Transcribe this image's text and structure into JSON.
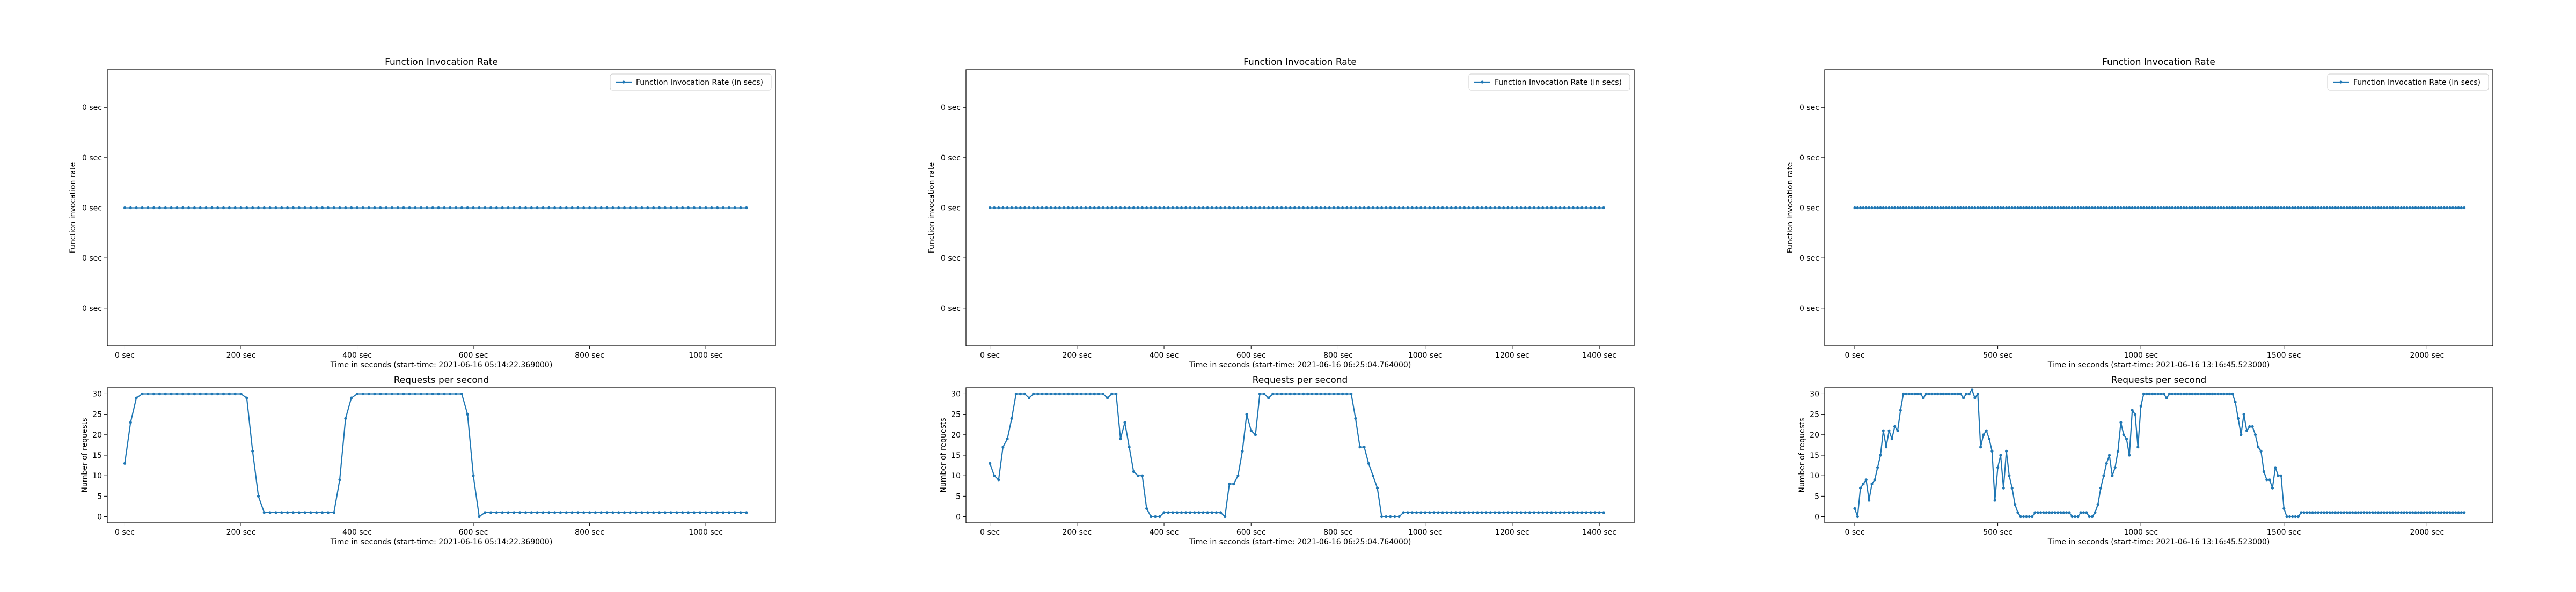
{
  "chart_data": [
    {
      "id": "p1-rate",
      "type": "line",
      "title": "Function Invocation Rate",
      "xlabel": "Time in seconds (start-time: 2021-06-16 05:14:22.369000)",
      "ylabel": "Function invocation rate",
      "legend": "Function Invocation Rate (in secs)",
      "legend_position": "top-right",
      "xlim": [
        -30,
        1120
      ],
      "x_ticks": [
        0,
        200,
        400,
        600,
        800,
        1000
      ],
      "x_tick_labels": [
        "0 sec",
        "200 sec",
        "400 sec",
        "600 sec",
        "800 sec",
        "1000 sec"
      ],
      "ylim": [
        -0.055,
        0.055
      ],
      "y_ticks": [
        -0.04,
        -0.02,
        0,
        0.02,
        0.04
      ],
      "y_tick_labels": [
        "0 sec",
        "0 sec",
        "0 sec",
        "0 sec",
        "0 sec"
      ],
      "series": [
        {
          "x_start": 0,
          "x_step": 10,
          "count": 108,
          "constant": 0
        }
      ],
      "color": "#1f77b4"
    },
    {
      "id": "p1-req",
      "type": "line",
      "title": "Requests per second",
      "xlabel": "Time in seconds (start-time: 2021-06-16 05:14:22.369000)",
      "ylabel": "Number of requests",
      "xlim": [
        -30,
        1120
      ],
      "x_ticks": [
        0,
        200,
        400,
        600,
        800,
        1000
      ],
      "x_tick_labels": [
        "0 sec",
        "200 sec",
        "400 sec",
        "600 sec",
        "800 sec",
        "1000 sec"
      ],
      "ylim": [
        -1.5,
        31.5
      ],
      "y_ticks": [
        0,
        5,
        10,
        15,
        20,
        25,
        30
      ],
      "y_tick_labels": [
        "0",
        "5",
        "10",
        "15",
        "20",
        "25",
        "30"
      ],
      "series": [
        {
          "x_start": 0,
          "x_step": 10,
          "values": [
            13,
            23,
            29,
            30,
            30,
            30,
            30,
            30,
            30,
            30,
            30,
            30,
            30,
            30,
            30,
            30,
            30,
            30,
            30,
            30,
            30,
            29,
            16,
            5,
            1,
            1,
            1,
            1,
            1,
            1,
            1,
            1,
            1,
            1,
            1,
            1,
            1,
            9,
            24,
            29,
            30,
            30,
            30,
            30,
            30,
            30,
            30,
            30,
            30,
            30,
            30,
            30,
            30,
            30,
            30,
            30,
            30,
            30,
            30,
            25,
            10,
            0,
            1,
            1,
            1,
            1,
            1,
            1,
            1,
            1,
            1,
            1,
            1,
            1,
            1,
            1,
            1,
            1,
            1,
            1,
            1,
            1,
            1,
            1,
            1,
            1,
            1,
            1,
            1,
            1,
            1,
            1,
            1,
            1,
            1,
            1,
            1,
            1,
            1,
            1,
            1,
            1,
            1,
            1,
            1,
            1,
            1,
            1
          ]
        }
      ],
      "color": "#1f77b4"
    },
    {
      "id": "p2-rate",
      "type": "line",
      "title": "Function Invocation Rate",
      "xlabel": "Time in seconds (start-time: 2021-06-16 06:25:04.764000)",
      "ylabel": "Function invocation rate",
      "legend": "Function Invocation Rate (in secs)",
      "legend_position": "top-right",
      "xlim": [
        -55,
        1480
      ],
      "x_ticks": [
        0,
        200,
        400,
        600,
        800,
        1000,
        1200,
        1400
      ],
      "x_tick_labels": [
        "0 sec",
        "200 sec",
        "400 sec",
        "600 sec",
        "800 sec",
        "1000 sec",
        "1200 sec",
        "1400 sec"
      ],
      "ylim": [
        -0.055,
        0.055
      ],
      "y_ticks": [
        -0.04,
        -0.02,
        0,
        0.02,
        0.04
      ],
      "y_tick_labels": [
        "0 sec",
        "0 sec",
        "0 sec",
        "0 sec",
        "0 sec"
      ],
      "series": [
        {
          "x_start": 0,
          "x_step": 10,
          "count": 142,
          "constant": 0
        }
      ],
      "color": "#1f77b4"
    },
    {
      "id": "p2-req",
      "type": "line",
      "title": "Requests per second",
      "xlabel": "Time in seconds (start-time: 2021-06-16 06:25:04.764000)",
      "ylabel": "Number of requests",
      "xlim": [
        -55,
        1480
      ],
      "x_ticks": [
        0,
        200,
        400,
        600,
        800,
        1000,
        1200,
        1400
      ],
      "x_tick_labels": [
        "0 sec",
        "200 sec",
        "400 sec",
        "600 sec",
        "800 sec",
        "1000 sec",
        "1200 sec",
        "1400 sec"
      ],
      "ylim": [
        -1.5,
        31.5
      ],
      "y_ticks": [
        0,
        5,
        10,
        15,
        20,
        25,
        30
      ],
      "y_tick_labels": [
        "0",
        "5",
        "10",
        "15",
        "20",
        "25",
        "30"
      ],
      "series": [
        {
          "x_start": 0,
          "x_step": 10,
          "values": [
            13,
            10,
            9,
            17,
            19,
            24,
            30,
            30,
            30,
            29,
            30,
            30,
            30,
            30,
            30,
            30,
            30,
            30,
            30,
            30,
            30,
            30,
            30,
            30,
            30,
            30,
            30,
            29,
            30,
            30,
            19,
            23,
            17,
            11,
            10,
            10,
            2,
            0,
            0,
            0,
            1,
            1,
            1,
            1,
            1,
            1,
            1,
            1,
            1,
            1,
            1,
            1,
            1,
            1,
            0,
            8,
            8,
            10,
            16,
            25,
            21,
            20,
            30,
            30,
            29,
            30,
            30,
            30,
            30,
            30,
            30,
            30,
            30,
            30,
            30,
            30,
            30,
            30,
            30,
            30,
            30,
            30,
            30,
            30,
            24,
            17,
            17,
            13,
            10,
            7,
            0,
            0,
            0,
            0,
            0,
            1,
            1,
            1,
            1,
            1,
            1,
            1,
            1,
            1,
            1,
            1,
            1,
            1,
            1,
            1,
            1,
            1,
            1,
            1,
            1,
            1,
            1,
            1,
            1,
            1,
            1,
            1,
            1,
            1,
            1,
            1,
            1,
            1,
            1,
            1,
            1,
            1,
            1,
            1,
            1,
            1,
            1,
            1,
            1,
            1,
            1,
            1
          ]
        }
      ],
      "color": "#1f77b4"
    },
    {
      "id": "p3-rate",
      "type": "line",
      "title": "Function Invocation Rate",
      "xlabel": "Time in seconds (start-time: 2021-06-16 13:16:45.523000)",
      "ylabel": "Function invocation rate",
      "legend": "Function Invocation Rate (in secs)",
      "legend_position": "top-right",
      "xlim": [
        -105,
        2230
      ],
      "x_ticks": [
        0,
        500,
        1000,
        1500,
        2000
      ],
      "x_tick_labels": [
        "0 sec",
        "500 sec",
        "1000 sec",
        "1500 sec",
        "2000 sec"
      ],
      "ylim": [
        -0.055,
        0.055
      ],
      "y_ticks": [
        -0.04,
        -0.02,
        0,
        0.02,
        0.04
      ],
      "y_tick_labels": [
        "0 sec",
        "0 sec",
        "0 sec",
        "0 sec",
        "0 sec"
      ],
      "series": [
        {
          "x_start": 0,
          "x_step": 10,
          "count": 214,
          "constant": 0
        }
      ],
      "color": "#1f77b4"
    },
    {
      "id": "p3-req",
      "type": "line",
      "title": "Requests per second",
      "xlabel": "Time in seconds (start-time: 2021-06-16 13:16:45.523000)",
      "ylabel": "Number of requests",
      "xlim": [
        -105,
        2230
      ],
      "x_ticks": [
        0,
        500,
        1000,
        1500,
        2000
      ],
      "x_tick_labels": [
        "0 sec",
        "500 sec",
        "1000 sec",
        "1500 sec",
        "2000 sec"
      ],
      "ylim": [
        -1.5,
        31.5
      ],
      "y_ticks": [
        0,
        5,
        10,
        15,
        20,
        25,
        30
      ],
      "y_tick_labels": [
        "0",
        "5",
        "10",
        "15",
        "20",
        "25",
        "30"
      ],
      "series": [
        {
          "x_start": 0,
          "x_step": 10,
          "values": [
            2,
            0,
            7,
            8,
            9,
            4,
            8,
            9,
            12,
            15,
            21,
            17,
            21,
            19,
            22,
            21,
            26,
            30,
            30,
            30,
            30,
            30,
            30,
            30,
            29,
            30,
            30,
            30,
            30,
            30,
            30,
            30,
            30,
            30,
            30,
            30,
            30,
            30,
            29,
            30,
            30,
            31,
            29,
            30,
            17,
            20,
            21,
            19,
            16,
            4,
            12,
            15,
            7,
            16,
            10,
            7,
            3,
            1,
            0,
            0,
            0,
            0,
            0,
            1,
            1,
            1,
            1,
            1,
            1,
            1,
            1,
            1,
            1,
            1,
            1,
            1,
            0,
            0,
            0,
            1,
            1,
            1,
            0,
            0,
            1,
            3,
            7,
            10,
            13,
            15,
            10,
            12,
            16,
            23,
            20,
            19,
            15,
            26,
            25,
            17,
            27,
            30,
            30,
            30,
            30,
            30,
            30,
            30,
            30,
            29,
            30,
            30,
            30,
            30,
            30,
            30,
            30,
            30,
            30,
            30,
            30,
            30,
            30,
            30,
            30,
            30,
            30,
            30,
            30,
            30,
            30,
            30,
            30,
            28,
            24,
            20,
            25,
            21,
            22,
            22,
            20,
            17,
            16,
            11,
            9,
            9,
            7,
            12,
            10,
            10,
            2,
            0,
            0,
            0,
            0,
            0,
            1,
            1,
            1,
            1,
            1,
            1,
            1,
            1,
            1,
            1,
            1,
            1,
            1,
            1,
            1,
            1,
            1,
            1,
            1,
            1,
            1,
            1,
            1,
            1,
            1,
            1,
            1,
            1,
            1,
            1,
            1,
            1,
            1,
            1,
            1,
            1,
            1,
            1,
            1,
            1,
            1,
            1,
            1,
            1,
            1,
            1,
            1,
            1,
            1,
            1,
            1,
            1,
            1,
            1,
            1,
            1,
            1,
            1
          ]
        }
      ],
      "color": "#1f77b4"
    }
  ]
}
